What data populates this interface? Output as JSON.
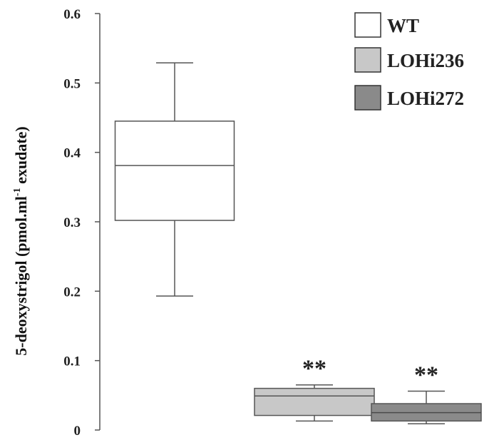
{
  "chart_data": {
    "type": "box",
    "title": "",
    "xlabel": "",
    "ylabel": {
      "main": "5-deoxystrigol (pmol.ml",
      "superscript": "-1",
      "suffix": " exudate)"
    },
    "ylim": [
      0,
      0.6
    ],
    "yticks": [
      {
        "value": 0,
        "label": "0"
      },
      {
        "value": 0.1,
        "label": "0.1"
      },
      {
        "value": 0.2,
        "label": "0.2"
      },
      {
        "value": 0.3,
        "label": "0.3"
      },
      {
        "value": 0.4,
        "label": "0.4"
      },
      {
        "value": 0.5,
        "label": "0.5"
      },
      {
        "value": 0.6,
        "label": "0.6"
      }
    ],
    "grid": false,
    "legend_position": "top-right",
    "series": [
      {
        "name": "WT",
        "color": "#ffffff",
        "median_color": "#555555",
        "whisker_low": 0.193,
        "q1": 0.302,
        "median": 0.381,
        "q3": 0.445,
        "whisker_high": 0.529,
        "significance": ""
      },
      {
        "name": "LOHi236",
        "color": "#c8c8c8",
        "median_color": "#555555",
        "whisker_low": 0.013,
        "q1": 0.021,
        "median": 0.049,
        "q3": 0.06,
        "whisker_high": 0.065,
        "significance": "**"
      },
      {
        "name": "LOHi272",
        "color": "#8a8a8a",
        "median_color": "#4a4a4a",
        "whisker_low": 0.009,
        "q1": 0.013,
        "median": 0.025,
        "q3": 0.038,
        "whisker_high": 0.056,
        "significance": "**"
      }
    ]
  }
}
